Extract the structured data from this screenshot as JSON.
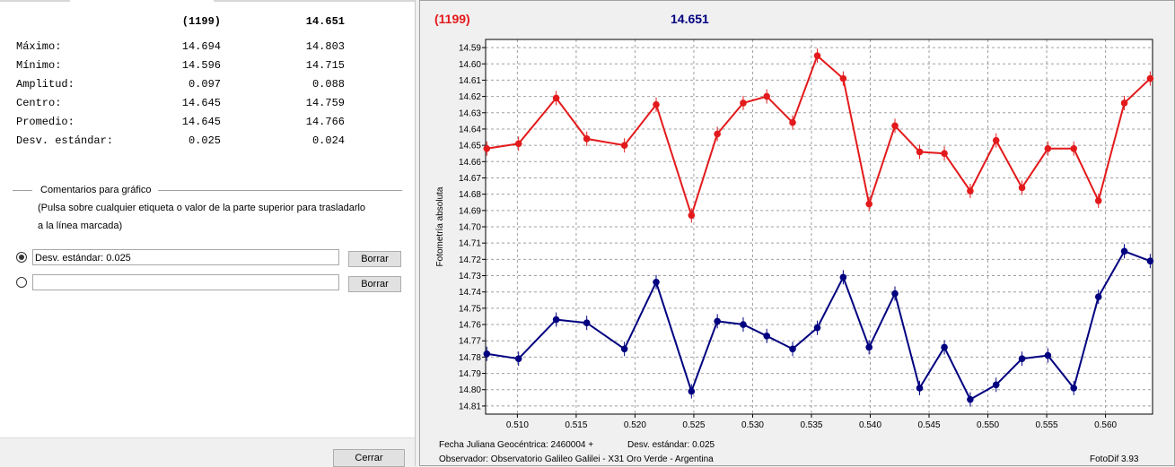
{
  "stats": {
    "header_col1": "(1199)",
    "header_col2": "14.651",
    "rows": [
      {
        "label": "Máximo:",
        "v1": "14.694",
        "v2": "14.803"
      },
      {
        "label": "Mínimo:",
        "v1": "14.596",
        "v2": "14.715"
      },
      {
        "label": "Amplitud:",
        "v1": "0.097",
        "v2": "0.088"
      },
      {
        "label": "Centro:",
        "v1": "14.645",
        "v2": "14.759"
      },
      {
        "label": "Promedio:",
        "v1": "14.645",
        "v2": "14.766"
      },
      {
        "label": "Desv. estándar:",
        "v1": "0.025",
        "v2": "0.024"
      }
    ]
  },
  "comments": {
    "section_title": "Comentarios para gráfico",
    "instructions_line1": "(Pulsa sobre cualquier etiqueta o valor de la parte superior para trasladarlo",
    "instructions_line2": "a la línea marcada)",
    "line1_value": "Desv. estándar: 0.025",
    "line2_value": "",
    "delete_label": "Borrar"
  },
  "close_label": "Cerrar",
  "footer": {
    "jd_label": "Fecha Juliana Geocéntrica: 2460004 +",
    "std_label": "Desv. estándar: 0.025",
    "observer": "Observador: Observatorio Galileo Galilei - X31 Oro Verde - Argentina",
    "version": "FotoDif 3.93"
  },
  "colors": {
    "series1": "#e31a1c",
    "series2": "#000080",
    "grid": "#a0a0a0"
  },
  "chart_data": {
    "type": "line",
    "ylabel": "Fotometría absoluta",
    "xlabel": "",
    "xlim": [
      0.5073,
      0.564
    ],
    "ylim": [
      14.585,
      14.815
    ],
    "y_reversed": true,
    "x_ticks": [
      "0.510",
      "0.515",
      "0.520",
      "0.525",
      "0.530",
      "0.535",
      "0.540",
      "0.545",
      "0.550",
      "0.555",
      "0.560"
    ],
    "y_ticks": [
      "14.59",
      "14.60",
      "14.61",
      "14.62",
      "14.63",
      "14.64",
      "14.65",
      "14.66",
      "14.67",
      "14.68",
      "14.69",
      "14.70",
      "14.71",
      "14.72",
      "14.73",
      "14.74",
      "14.75",
      "14.76",
      "14.77",
      "14.78",
      "14.79",
      "14.80",
      "14.81"
    ],
    "grid": true,
    "series": [
      {
        "name": "(1199)",
        "color": "#e31a1c",
        "points": [
          [
            0.5074,
            14.652
          ],
          [
            0.5101,
            14.649
          ],
          [
            0.5133,
            14.621
          ],
          [
            0.5159,
            14.646
          ],
          [
            0.5191,
            14.65
          ],
          [
            0.5218,
            14.625
          ],
          [
            0.5248,
            14.693
          ],
          [
            0.527,
            14.643
          ],
          [
            0.5292,
            14.624
          ],
          [
            0.5312,
            14.62
          ],
          [
            0.5334,
            14.636
          ],
          [
            0.5355,
            14.595
          ],
          [
            0.5377,
            14.609
          ],
          [
            0.5399,
            14.686
          ],
          [
            0.5421,
            14.638
          ],
          [
            0.5442,
            14.654
          ],
          [
            0.5463,
            14.655
          ],
          [
            0.5485,
            14.678
          ],
          [
            0.5507,
            14.647
          ],
          [
            0.5529,
            14.676
          ],
          [
            0.5551,
            14.652
          ],
          [
            0.5573,
            14.652
          ],
          [
            0.5594,
            14.684
          ],
          [
            0.5616,
            14.624
          ],
          [
            0.5638,
            14.609
          ]
        ]
      },
      {
        "name": "14.651",
        "color": "#000080",
        "points": [
          [
            0.5074,
            14.778
          ],
          [
            0.5101,
            14.781
          ],
          [
            0.5133,
            14.757
          ],
          [
            0.5159,
            14.759
          ],
          [
            0.5191,
            14.775
          ],
          [
            0.5218,
            14.734
          ],
          [
            0.5248,
            14.801
          ],
          [
            0.527,
            14.758
          ],
          [
            0.5292,
            14.76
          ],
          [
            0.5312,
            14.767
          ],
          [
            0.5334,
            14.775
          ],
          [
            0.5355,
            14.762
          ],
          [
            0.5377,
            14.731
          ],
          [
            0.5399,
            14.774
          ],
          [
            0.5421,
            14.741
          ],
          [
            0.5442,
            14.799
          ],
          [
            0.5463,
            14.774
          ],
          [
            0.5485,
            14.806
          ],
          [
            0.5507,
            14.797
          ],
          [
            0.5529,
            14.781
          ],
          [
            0.5551,
            14.779
          ],
          [
            0.5573,
            14.799
          ],
          [
            0.5594,
            14.743
          ],
          [
            0.5616,
            14.715
          ],
          [
            0.5638,
            14.721
          ]
        ]
      }
    ]
  }
}
